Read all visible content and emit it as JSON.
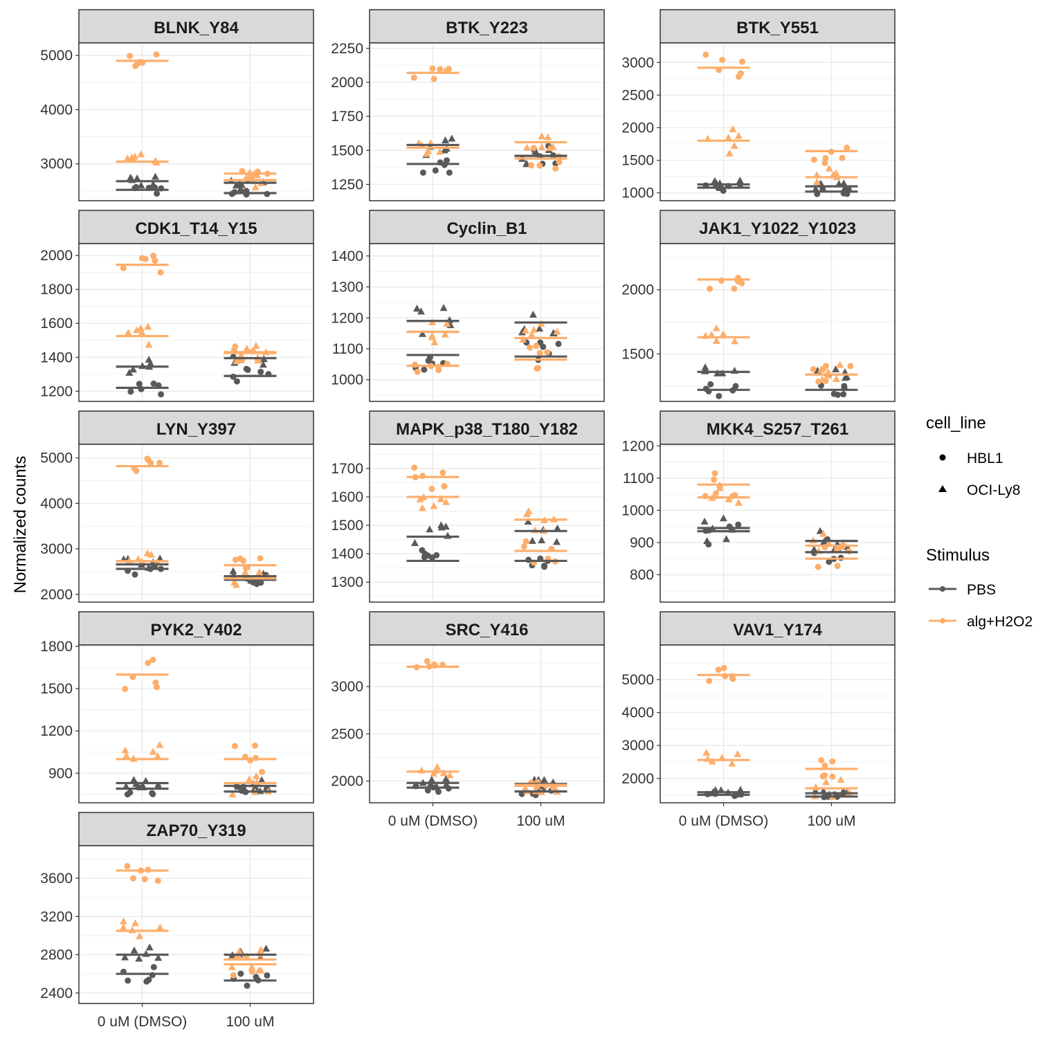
{
  "chart_data": {
    "type": "scatter",
    "ylabel": "Normalized counts",
    "xlabel": "",
    "categories": [
      "0 uM (DMSO)",
      "100 uM"
    ],
    "colors": {
      "PBS": "#595959",
      "alg+H2O2": "#FDAE6B"
    },
    "legend": {
      "position": "right",
      "shape": {
        "title": "cell_line",
        "items": [
          {
            "label": "HBL1",
            "shape": "circle"
          },
          {
            "label": "OCI-Ly8",
            "shape": "triangle"
          }
        ]
      },
      "color": {
        "title": "Stimulus",
        "items": [
          {
            "label": "PBS",
            "color": "#595959"
          },
          {
            "label": "alg+H2O2",
            "color": "#FDAE6B"
          }
        ]
      }
    },
    "panels": [
      {
        "title": "BLNK_Y84",
        "ylim": [
          2320,
          5230
        ],
        "yticks": [
          3000,
          4000,
          5000
        ],
        "means": {
          "0 uM (DMSO)": {
            "PBS": {
              "HBL1": 2520,
              "OCI-Ly8": 2680
            },
            "alg+H2O2": {
              "HBL1": 4900,
              "OCI-Ly8": 3040
            }
          },
          "100 uM": {
            "PBS": {
              "HBL1": 2460,
              "OCI-Ly8": 2650
            },
            "alg+H2O2": {
              "HBL1": 2820,
              "OCI-Ly8": 2700
            }
          }
        },
        "spread": {
          "PBS": 150,
          "alg+H2O2": 200
        }
      },
      {
        "title": "BTK_Y223",
        "ylim": [
          1130,
          2290
        ],
        "yticks": [
          1250,
          1500,
          1750,
          2000,
          2250
        ],
        "means": {
          "0 uM (DMSO)": {
            "PBS": {
              "HBL1": 1400,
              "OCI-Ly8": 1540
            },
            "alg+H2O2": {
              "HBL1": 2070,
              "OCI-Ly8": 1520
            }
          },
          "100 uM": {
            "PBS": {
              "HBL1": 1460,
              "OCI-Ly8": 1460
            },
            "alg+H2O2": {
              "HBL1": 1440,
              "OCI-Ly8": 1560
            }
          }
        },
        "spread": {
          "PBS": 110,
          "alg+H2O2": 130
        }
      },
      {
        "title": "BTK_Y551",
        "ylim": [
          880,
          3300
        ],
        "yticks": [
          1000,
          1500,
          2000,
          2500,
          3000
        ],
        "means": {
          "0 uM (DMSO)": {
            "PBS": {
              "HBL1": 1080,
              "OCI-Ly8": 1130
            },
            "alg+H2O2": {
              "HBL1": 2920,
              "OCI-Ly8": 1800
            }
          },
          "100 uM": {
            "PBS": {
              "HBL1": 1020,
              "OCI-Ly8": 1100
            },
            "alg+H2O2": {
              "HBL1": 1640,
              "OCI-Ly8": 1240
            }
          }
        },
        "spread": {
          "PBS": 90,
          "alg+H2O2": 300
        }
      },
      {
        "title": "CDK1_T14_Y15",
        "ylim": [
          1140,
          2070
        ],
        "yticks": [
          1200,
          1400,
          1600,
          1800,
          2000
        ],
        "means": {
          "0 uM (DMSO)": {
            "PBS": {
              "HBL1": 1220,
              "OCI-Ly8": 1345
            },
            "alg+H2O2": {
              "HBL1": 1945,
              "OCI-Ly8": 1525
            }
          },
          "100 uM": {
            "PBS": {
              "HBL1": 1290,
              "OCI-Ly8": 1395
            },
            "alg+H2O2": {
              "HBL1": 1425,
              "OCI-Ly8": 1430
            }
          }
        },
        "spread": {
          "PBS": 60,
          "alg+H2O2": 80
        }
      },
      {
        "title": "Cyclin_B1",
        "ylim": [
          930,
          1440
        ],
        "yticks": [
          1000,
          1100,
          1200,
          1300,
          1400
        ],
        "means": {
          "0 uM (DMSO)": {
            "PBS": {
              "HBL1": 1080,
              "OCI-Ly8": 1190
            },
            "alg+H2O2": {
              "HBL1": 1045,
              "OCI-Ly8": 1155
            }
          },
          "100 uM": {
            "PBS": {
              "HBL1": 1075,
              "OCI-Ly8": 1185
            },
            "alg+H2O2": {
              "HBL1": 1065,
              "OCI-Ly8": 1135
            }
          }
        },
        "spread": {
          "PBS": 70,
          "alg+H2O2": 70
        }
      },
      {
        "title": "JAK1_Y1022_Y1023",
        "ylim": [
          1130,
          2360
        ],
        "yticks": [
          1500,
          2000
        ],
        "means": {
          "0 uM (DMSO)": {
            "PBS": {
              "HBL1": 1220,
              "OCI-Ly8": 1360
            },
            "alg+H2O2": {
              "HBL1": 2080,
              "OCI-Ly8": 1630
            }
          },
          "100 uM": {
            "PBS": {
              "HBL1": 1220,
              "OCI-Ly8": 1340
            },
            "alg+H2O2": {
              "HBL1": 1340,
              "OCI-Ly8": 1340
            }
          }
        },
        "spread": {
          "PBS": 70,
          "alg+H2O2": 120
        }
      },
      {
        "title": "LYN_Y397",
        "ylim": [
          1830,
          5300
        ],
        "yticks": [
          2000,
          3000,
          4000,
          5000
        ],
        "means": {
          "0 uM (DMSO)": {
            "PBS": {
              "HBL1": 2560,
              "OCI-Ly8": 2660
            },
            "alg+H2O2": {
              "HBL1": 4820,
              "OCI-Ly8": 2730
            }
          },
          "100 uM": {
            "PBS": {
              "HBL1": 2320,
              "OCI-Ly8": 2400
            },
            "alg+H2O2": {
              "HBL1": 2640,
              "OCI-Ly8": 2350
            }
          }
        },
        "spread": {
          "PBS": 180,
          "alg+H2O2": 250
        }
      },
      {
        "title": "MAPK_p38_T180_Y182",
        "ylim": [
          1230,
          1785
        ],
        "yticks": [
          1300,
          1400,
          1500,
          1600,
          1700
        ],
        "means": {
          "0 uM (DMSO)": {
            "PBS": {
              "HBL1": 1375,
              "OCI-Ly8": 1460
            },
            "alg+H2O2": {
              "HBL1": 1670,
              "OCI-Ly8": 1600
            }
          },
          "100 uM": {
            "PBS": {
              "HBL1": 1375,
              "OCI-Ly8": 1480
            },
            "alg+H2O2": {
              "HBL1": 1410,
              "OCI-Ly8": 1520
            }
          }
        },
        "spread": {
          "PBS": 60,
          "alg+H2O2": 60
        }
      },
      {
        "title": "MKK4_S257_T261",
        "ylim": [
          715,
          1205
        ],
        "yticks": [
          800,
          900,
          1000,
          1100,
          1200
        ],
        "means": {
          "0 uM (DMSO)": {
            "PBS": {
              "HBL1": 935,
              "OCI-Ly8": 945
            },
            "alg+H2O2": {
              "HBL1": 1080,
              "OCI-Ly8": 1040
            }
          },
          "100 uM": {
            "PBS": {
              "HBL1": 870,
              "OCI-Ly8": 905
            },
            "alg+H2O2": {
              "HBL1": 850,
              "OCI-Ly8": 890
            }
          }
        },
        "spread": {
          "PBS": 60,
          "alg+H2O2": 60
        }
      },
      {
        "title": "PYK2_Y402",
        "ylim": [
          690,
          1810
        ],
        "yticks": [
          900,
          1200,
          1500,
          1800
        ],
        "means": {
          "0 uM (DMSO)": {
            "PBS": {
              "HBL1": 790,
              "OCI-Ly8": 830
            },
            "alg+H2O2": {
              "HBL1": 1600,
              "OCI-Ly8": 1000
            }
          },
          "100 uM": {
            "PBS": {
              "HBL1": 770,
              "OCI-Ly8": 810
            },
            "alg+H2O2": {
              "HBL1": 1000,
              "OCI-Ly8": 830
            }
          }
        },
        "spread": {
          "PBS": 60,
          "alg+H2O2": 150
        }
      },
      {
        "title": "SRC_Y416",
        "ylim": [
          1770,
          3440
        ],
        "yticks": [
          2000,
          2500,
          3000
        ],
        "means": {
          "0 uM (DMSO)": {
            "PBS": {
              "HBL1": 1930,
              "OCI-Ly8": 1980
            },
            "alg+H2O2": {
              "HBL1": 3210,
              "OCI-Ly8": 2100
            }
          },
          "100 uM": {
            "PBS": {
              "HBL1": 1890,
              "OCI-Ly8": 1970
            },
            "alg+H2O2": {
              "HBL1": 1960,
              "OCI-Ly8": 1950
            }
          }
        },
        "spread": {
          "PBS": 70,
          "alg+H2O2": 100
        }
      },
      {
        "title": "VAV1_Y174",
        "ylim": [
          1260,
          6050
        ],
        "yticks": [
          2000,
          3000,
          4000,
          5000
        ],
        "means": {
          "0 uM (DMSO)": {
            "PBS": {
              "HBL1": 1500,
              "OCI-Ly8": 1580
            },
            "alg+H2O2": {
              "HBL1": 5140,
              "OCI-Ly8": 2560
            }
          },
          "100 uM": {
            "PBS": {
              "HBL1": 1450,
              "OCI-Ly8": 1550
            },
            "alg+H2O2": {
              "HBL1": 2290,
              "OCI-Ly8": 1700
            }
          }
        },
        "spread": {
          "PBS": 100,
          "alg+H2O2": 400
        }
      },
      {
        "title": "ZAP70_Y319",
        "ylim": [
          2290,
          3940
        ],
        "yticks": [
          2400,
          2800,
          3200,
          3600
        ],
        "means": {
          "0 uM (DMSO)": {
            "PBS": {
              "HBL1": 2600,
              "OCI-Ly8": 2800
            },
            "alg+H2O2": {
              "HBL1": 3680,
              "OCI-Ly8": 3050
            }
          },
          "100 uM": {
            "PBS": {
              "HBL1": 2530,
              "OCI-Ly8": 2800
            },
            "alg+H2O2": {
              "HBL1": 2700,
              "OCI-Ly8": 2750
            }
          }
        },
        "spread": {
          "PBS": 120,
          "alg+H2O2": 180
        }
      }
    ]
  }
}
